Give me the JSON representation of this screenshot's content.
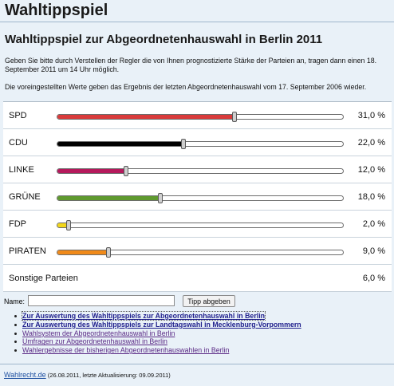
{
  "page": {
    "title": "Wahltippspiel",
    "heading": "Wahltippspiel zur Abgeordnetenhauswahl in Berlin 2011",
    "intro1": "Geben Sie bitte durch Verstellen der Regler die von Ihnen prognostizierte Stärke der Parteien an, tragen dann einen 18. September 2011 um 14 Uhr möglich.",
    "intro2": "Die voreingestellten Werte geben das Ergebnis der letzten Abgeordnetenhauswahl vom 17. September 2006 wieder."
  },
  "parties": [
    {
      "name": "SPD",
      "value": 31.0,
      "display": "31,0 %",
      "color": "#d93b3b"
    },
    {
      "name": "CDU",
      "value": 22.0,
      "display": "22,0 %",
      "color": "#000000"
    },
    {
      "name": "LINKE",
      "value": 12.0,
      "display": "12,0 %",
      "color": "#b5195c"
    },
    {
      "name": "GRÜNE",
      "value": 18.0,
      "display": "18,0 %",
      "color": "#5f9a2e"
    },
    {
      "name": "FDP",
      "value": 2.0,
      "display": "2,0 %",
      "color": "#f2d61a"
    },
    {
      "name": "PIRATEN",
      "value": 9.0,
      "display": "9,0 %",
      "color": "#f08a1a"
    }
  ],
  "others": {
    "name": "Sonstige Parteien",
    "display": "6,0 %"
  },
  "form": {
    "name_label": "Name:",
    "name_value": "",
    "submit_label": "Tipp abgeben"
  },
  "links": [
    {
      "text": "Zur Auswertung des Wahltippspiels zur Abgeordnetenhauswahl in Berlin",
      "strong": true
    },
    {
      "text": "Zur Auswertung des Wahltippspiels zur Landtagswahl in Mecklenburg-Vorpommern",
      "strong": true
    },
    {
      "text": "Wahlsystem der Abgeordnetenhauswahl in Berlin",
      "strong": false
    },
    {
      "text": "Umfragen zur Abgeordnetenhauswahl in Berlin",
      "strong": false
    },
    {
      "text": "Wahlergebnisse der bisherigen Abgeordnetenhauswahlen in Berlin",
      "strong": false
    }
  ],
  "footer": {
    "site": "Wahlrecht.de",
    "meta": " (26.08.2011, letzte Aktualisierung: 09.09.2011)"
  }
}
